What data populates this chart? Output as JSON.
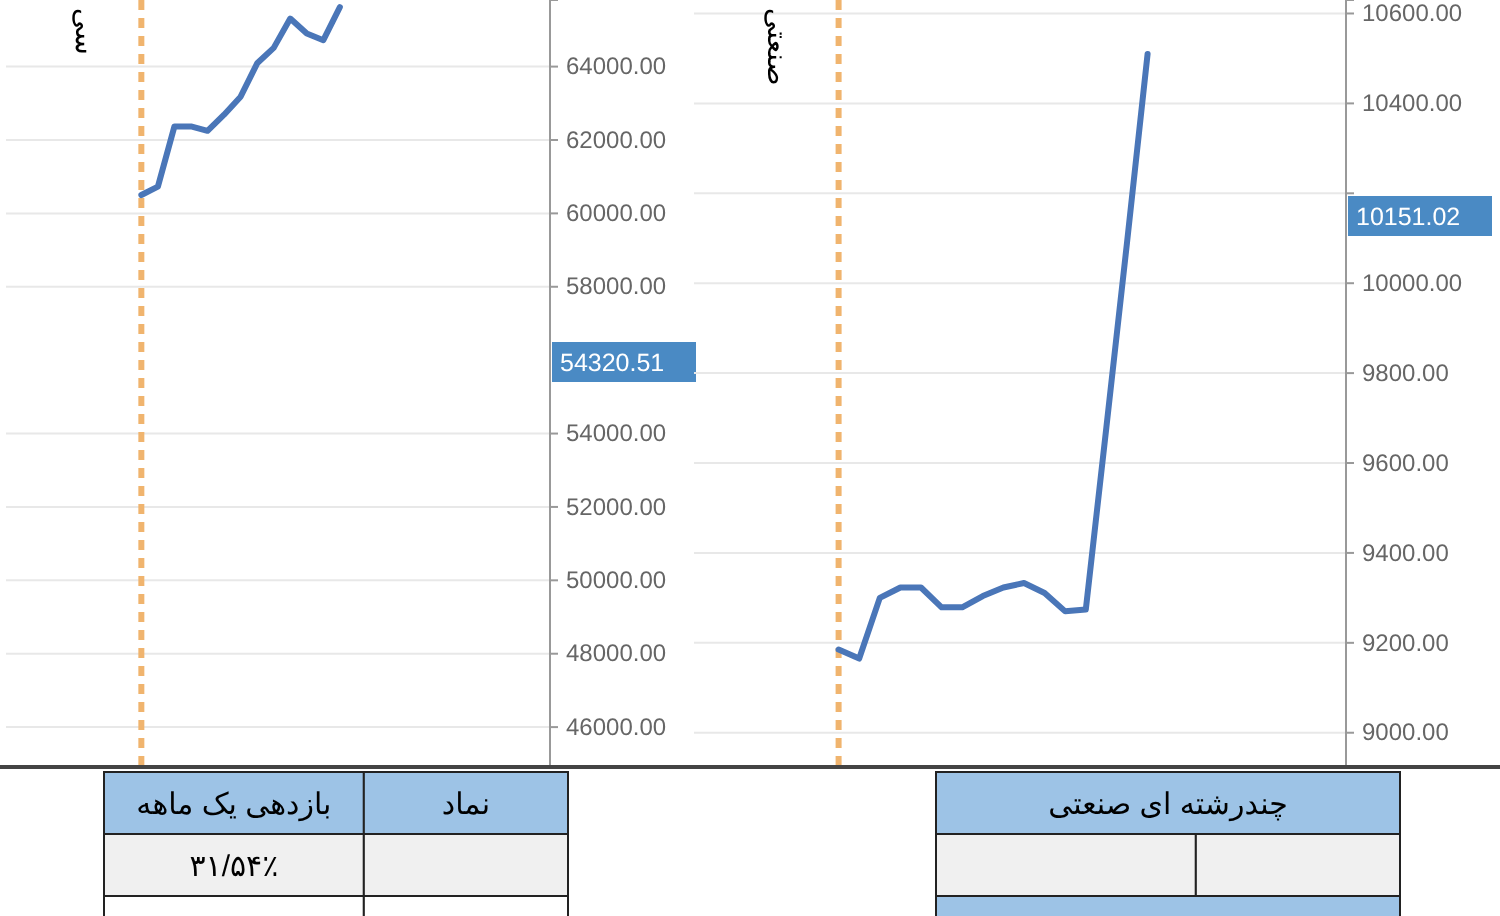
{
  "chart_data": [
    {
      "type": "line",
      "ylabel": "سی",
      "categories": [
        null,
        null,
        null,
        null,
        null,
        null,
        null,
        null,
        null,
        null,
        null,
        null,
        null,
        null,
        null,
        null,
        null,
        null,
        null,
        null,
        null,
        null,
        null,
        null,
        null,
        null,
        null,
        null,
        null,
        null,
        null,
        null,
        null
      ],
      "series": [
        {
          "color": "#4a76b8",
          "values": [
            null,
            null,
            null,
            null,
            null,
            null,
            null,
            null,
            60500,
            60730,
            62370,
            62370,
            62250,
            62690,
            63180,
            64090,
            64510,
            65310,
            64900,
            64720,
            65620,
            null,
            null,
            null,
            null,
            null,
            null,
            null,
            null,
            null,
            null,
            null,
            null
          ]
        }
      ],
      "ylim": [
        44940,
        65815
      ],
      "yticks": [
        {
          "value": 46000,
          "label": "46000.00"
        },
        {
          "value": 48000,
          "label": "48000.00"
        },
        {
          "value": 50000,
          "label": "50000.00"
        },
        {
          "value": 52000,
          "label": "52000.00"
        },
        {
          "value": 54000,
          "label": "54000.00"
        },
        {
          "value": 58000,
          "label": "58000.00"
        },
        {
          "value": 60000,
          "label": "60000.00"
        },
        {
          "value": 62000,
          "label": "62000.00"
        },
        {
          "value": 64000,
          "label": "64000.00"
        }
      ],
      "grid": "y",
      "tick_labels": "y",
      "line_style": "solid",
      "annotations": [
        "54320.51"
      ]
    },
    {
      "type": "line",
      "ylabel": "صنعتی",
      "categories": [
        null,
        null,
        null,
        null,
        null,
        null,
        null,
        null,
        null,
        null,
        null,
        null,
        null,
        null,
        null,
        null,
        null,
        null,
        null,
        null,
        null,
        null,
        null,
        null,
        null,
        null,
        null,
        null,
        null,
        null,
        null,
        null
      ],
      "series": [
        {
          "color": "#4a76b8",
          "values": [
            null,
            null,
            null,
            null,
            null,
            null,
            null,
            9185,
            9165,
            9300,
            9323,
            9323,
            9279,
            9279,
            9304,
            9323,
            9333,
            9311,
            9270,
            9274,
            9680,
            10090,
            10510,
            null,
            null,
            null,
            null,
            null,
            null,
            null,
            null,
            null
          ]
        }
      ],
      "ylim": [
        8926,
        10630
      ],
      "yticks": [
        {
          "value": 9000,
          "label": "9000.00"
        },
        {
          "value": 9200,
          "label": "9200.00"
        },
        {
          "value": 9400,
          "label": "9400.00"
        },
        {
          "value": 9600,
          "label": "9600.00"
        },
        {
          "value": 9800,
          "label": "9800.00"
        },
        {
          "value": 10000,
          "label": "10000.00"
        },
        {
          "value": 10200,
          "label": null
        },
        {
          "value": 10400,
          "label": "10400.00"
        },
        {
          "value": 10600,
          "label": "10600.00"
        }
      ],
      "grid": "y",
      "tick_labels": "y",
      "line_style": "solid",
      "annotations": [
        "10151.02"
      ]
    },
    {
      "type": "other",
      "annotations": [
        "بازدهی یک ماهه",
        "نماد",
        "۳۱/۵۴٪"
      ]
    },
    {
      "type": "other",
      "title": "چندرشته ای صنعتی"
    }
  ]
}
